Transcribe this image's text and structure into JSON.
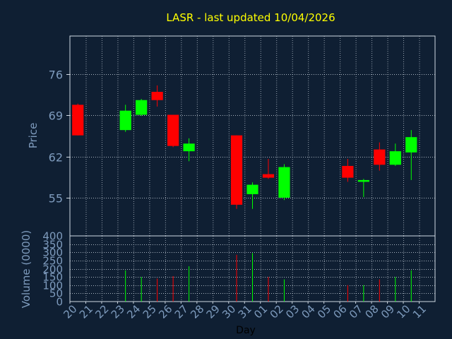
{
  "colors": {
    "background": "#0f1f33",
    "axis": "#cfd8e3",
    "grid": "#cfd8e3",
    "title": "#ffff00",
    "label": "#7e9bbd",
    "up": "#00ff00",
    "down": "#ff0000"
  },
  "chart_data": [
    {
      "type": "candlestick",
      "title": "LASR - last updated 10/04/2026",
      "ylabel": "Price",
      "ylim": [
        48.5,
        82.5
      ],
      "yticks": [
        55,
        62,
        69,
        76
      ],
      "grid": true,
      "x_ticks": [
        "20",
        "21",
        "22",
        "23",
        "24",
        "25",
        "26",
        "27",
        "28",
        "29",
        "30",
        "31",
        "01",
        "02",
        "03",
        "04",
        "05",
        "06",
        "07",
        "08",
        "09",
        "10",
        "11"
      ],
      "candles": [
        {
          "x": "20",
          "open": 70.8,
          "high": 71.0,
          "low": 65.6,
          "close": 65.6
        },
        {
          "x": "23",
          "open": 66.5,
          "high": 70.8,
          "low": 66.2,
          "close": 69.8
        },
        {
          "x": "24",
          "open": 69.1,
          "high": 71.8,
          "low": 68.9,
          "close": 71.6
        },
        {
          "x": "25",
          "open": 73.0,
          "high": 74.1,
          "low": 70.5,
          "close": 71.6
        },
        {
          "x": "26",
          "open": 69.1,
          "high": 69.1,
          "low": 63.6,
          "close": 63.8
        },
        {
          "x": "27",
          "open": 62.9,
          "high": 65.1,
          "low": 61.2,
          "close": 64.2
        },
        {
          "x": "30",
          "open": 65.6,
          "high": 65.6,
          "low": 53.1,
          "close": 53.8
        },
        {
          "x": "31",
          "open": 55.6,
          "high": 57.6,
          "low": 53.1,
          "close": 57.2
        },
        {
          "x": "01",
          "open": 59.0,
          "high": 61.6,
          "low": 58.2,
          "close": 58.4
        },
        {
          "x": "02",
          "open": 55.0,
          "high": 60.7,
          "low": 54.6,
          "close": 60.2
        },
        {
          "x": "06",
          "open": 60.4,
          "high": 61.6,
          "low": 57.7,
          "close": 58.4
        },
        {
          "x": "07",
          "open": 57.7,
          "high": 58.2,
          "low": 55.1,
          "close": 58.0
        },
        {
          "x": "08",
          "open": 63.2,
          "high": 64.4,
          "low": 59.6,
          "close": 60.6
        },
        {
          "x": "09",
          "open": 60.6,
          "high": 64.2,
          "low": 60.4,
          "close": 62.9
        },
        {
          "x": "10",
          "open": 62.7,
          "high": 66.5,
          "low": 58.0,
          "close": 65.3
        }
      ]
    },
    {
      "type": "bar",
      "ylabel": "Volume (0000)",
      "xlabel": "Day",
      "ylim": [
        0,
        400
      ],
      "yticks": [
        0,
        50,
        100,
        150,
        200,
        250,
        300,
        350,
        400
      ],
      "grid": true,
      "bars": [
        {
          "x": "23",
          "value": 190,
          "dir": "up"
        },
        {
          "x": "24",
          "value": 150,
          "dir": "up"
        },
        {
          "x": "25",
          "value": 140,
          "dir": "down"
        },
        {
          "x": "26",
          "value": 155,
          "dir": "down"
        },
        {
          "x": "27",
          "value": 215,
          "dir": "up"
        },
        {
          "x": "30",
          "value": 285,
          "dir": "down"
        },
        {
          "x": "31",
          "value": 295,
          "dir": "up"
        },
        {
          "x": "01",
          "value": 150,
          "dir": "down"
        },
        {
          "x": "02",
          "value": 135,
          "dir": "up"
        },
        {
          "x": "06",
          "value": 100,
          "dir": "down"
        },
        {
          "x": "07",
          "value": 100,
          "dir": "up"
        },
        {
          "x": "08",
          "value": 135,
          "dir": "down"
        },
        {
          "x": "09",
          "value": 150,
          "dir": "up"
        },
        {
          "x": "10",
          "value": 190,
          "dir": "up"
        }
      ]
    }
  ]
}
